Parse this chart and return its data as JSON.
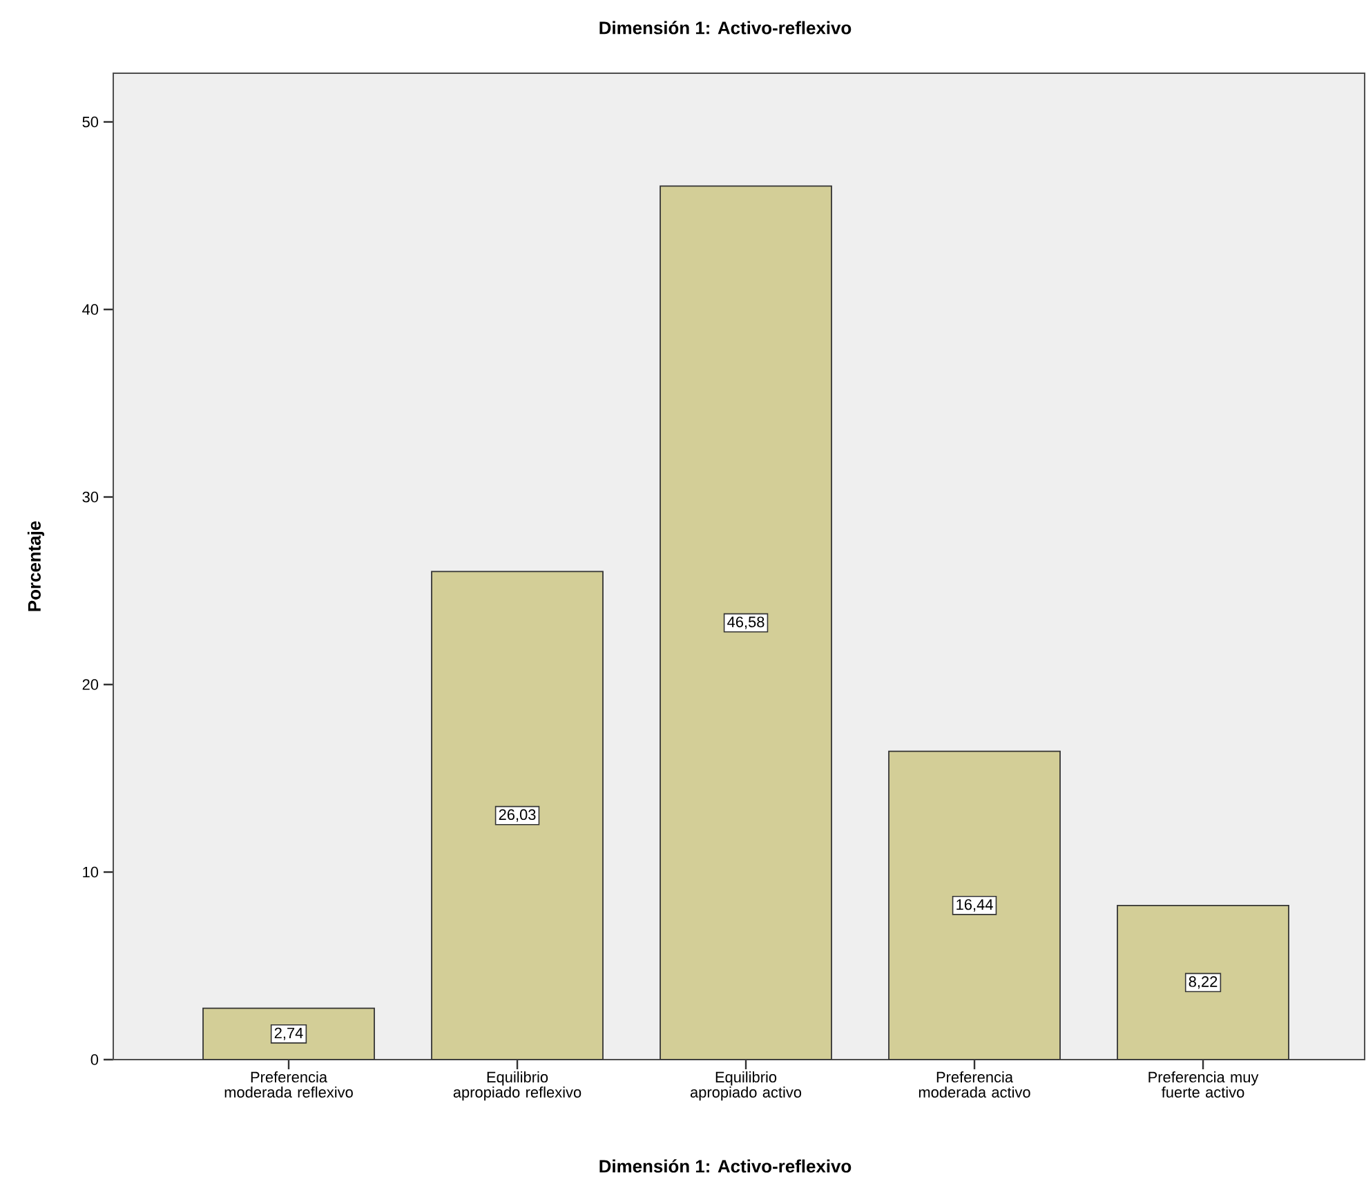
{
  "chart_data": {
    "type": "bar",
    "title": "Dimensión 1: Activo-reflexivo",
    "xlabel": "Dimensión 1: Activo-reflexivo",
    "ylabel": "Porcentaje",
    "categories": [
      "Preferencia moderada reflexivo",
      "Equilibrio apropiado reflexivo",
      "Equilibrio apropiado activo",
      "Preferencia moderada activo",
      "Preferencia muy fuerte activo"
    ],
    "values": [
      2.74,
      26.03,
      46.58,
      16.44,
      8.22
    ],
    "value_labels": [
      "2,74",
      "26,03",
      "46,58",
      "16,44",
      "8,22"
    ],
    "color": "#d3ce97",
    "ylim": [
      0,
      52.6
    ],
    "yticks": [
      0,
      10,
      20,
      30,
      40,
      50
    ],
    "grid": false
  }
}
